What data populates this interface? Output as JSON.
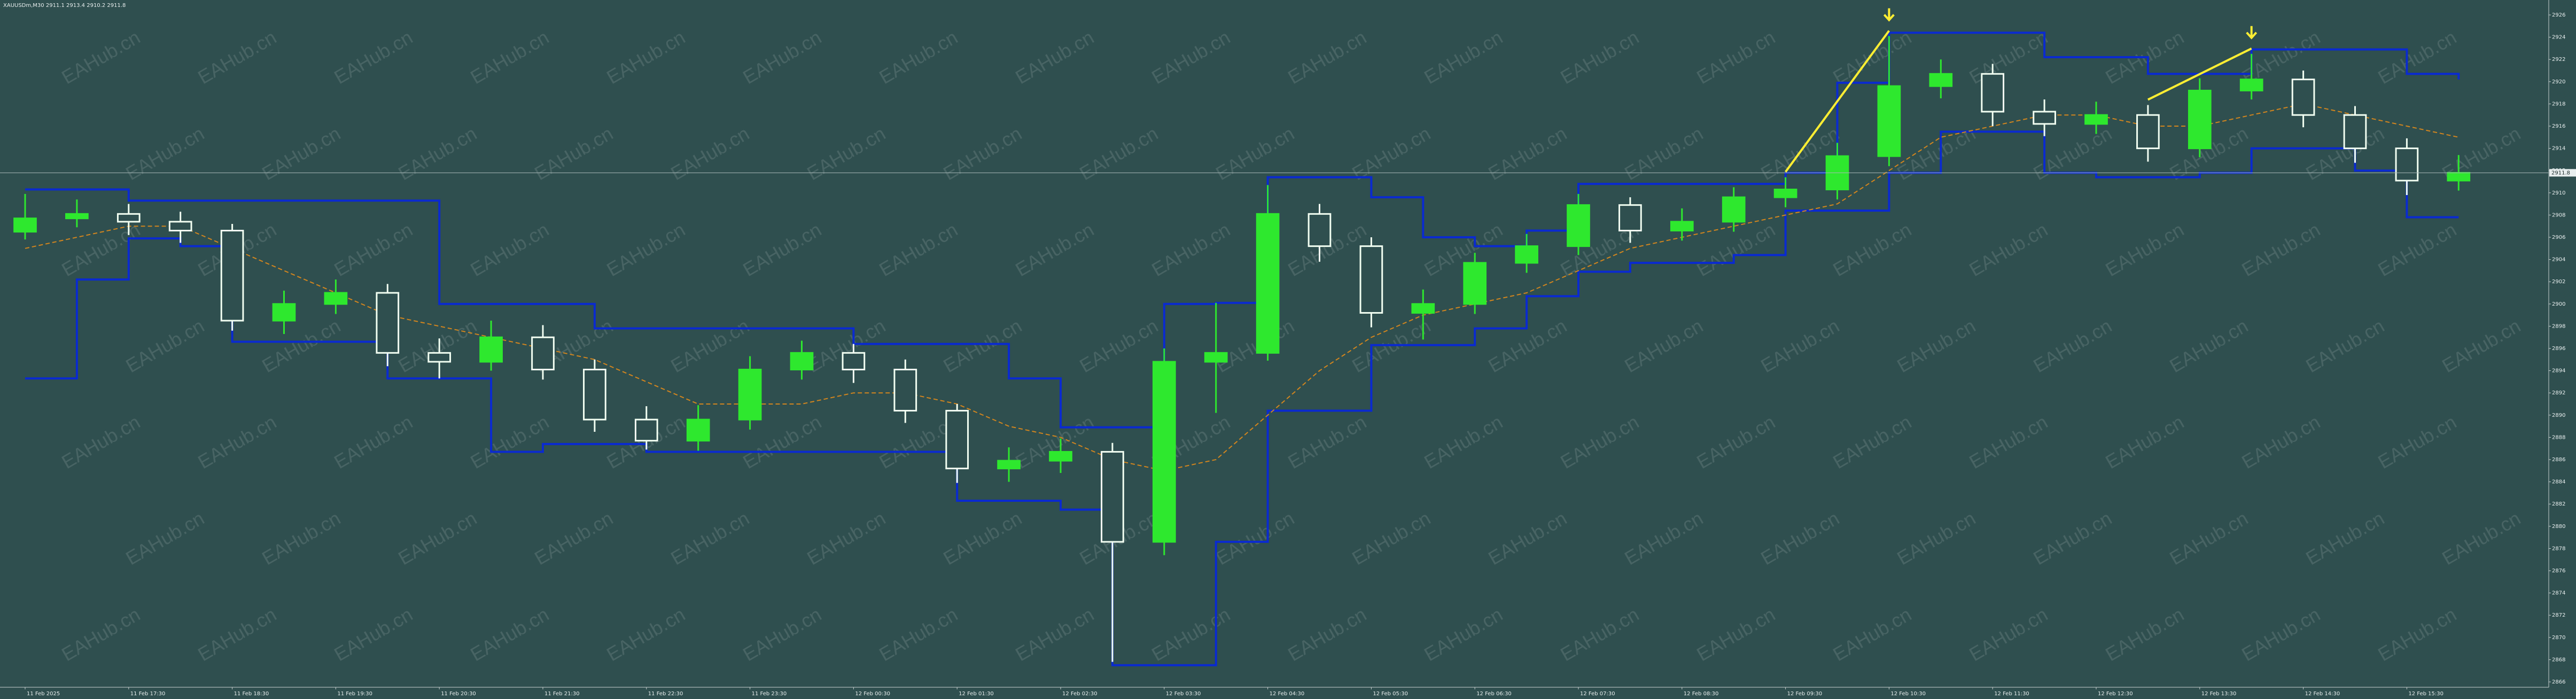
{
  "chart_data": {
    "type": "candlestick",
    "symbol": "XAUUSDm,M30",
    "watermark": "EAHub.cn",
    "colors": {
      "background": "#2f4f4f",
      "up": "#2ee82e",
      "down": "#f2fff2",
      "price_line": "#a9b9b9"
    },
    "categories": [
      "11 Feb 2025",
      null,
      "11 Feb 17:30",
      null,
      "11 Feb 18:30",
      null,
      "11 Feb 19:30",
      null,
      "11 Feb 20:30",
      null,
      "11 Feb 21:30",
      null,
      "11 Feb 22:30",
      null,
      "11 Feb 23:30",
      null,
      "12 Feb 00:30",
      null,
      "12 Feb 01:30",
      null,
      "12 Feb 02:30",
      null,
      "12 Feb 03:30",
      null,
      "12 Feb 04:30",
      null,
      "12 Feb 05:30",
      null,
      "12 Feb 06:30",
      null,
      "12 Feb 07:30",
      null,
      "12 Feb 08:30",
      null,
      "12 Feb 09:30",
      null,
      "12 Feb 10:30",
      null,
      "12 Feb 11:30",
      null,
      "12 Feb 12:30",
      null,
      "12 Feb 13:30",
      null,
      "12 Feb 14:30",
      null,
      "12 Feb 15:30",
      null
    ],
    "open": [
      2906.5,
      2907.7,
      2908.1,
      2907.4,
      2906.6,
      2898.5,
      2900.0,
      2901.0,
      2895.6,
      2894.8,
      2897.0,
      2894.1,
      2889.6,
      2887.7,
      2889.6,
      2894.1,
      2895.6,
      2894.1,
      2890.4,
      2885.2,
      2885.9,
      2886.7,
      2878.6,
      2894.8,
      2895.6,
      2908.1,
      2905.2,
      2899.2,
      2900.0,
      2903.7,
      2905.2,
      2908.9,
      2906.6,
      2907.4,
      2909.6,
      2910.3,
      2913.3,
      2919.6,
      2920.7,
      2917.3,
      2916.2,
      2917.0,
      2914.0,
      2919.2,
      2920.2,
      2917.0,
      2914.0,
      2911.1
    ],
    "high": [
      2909.9,
      2909.4,
      2909.0,
      2908.3,
      2907.2,
      2901.2,
      2902.2,
      2901.8,
      2896.9,
      2898.5,
      2898.1,
      2895.0,
      2890.8,
      2890.9,
      2895.3,
      2896.7,
      2896.4,
      2895.0,
      2891.0,
      2887.1,
      2887.9,
      2887.5,
      2896.0,
      2900.1,
      2910.7,
      2909.0,
      2906.0,
      2901.3,
      2904.6,
      2906.3,
      2909.9,
      2909.6,
      2908.6,
      2910.5,
      2911.4,
      2914.5,
      2924.1,
      2922.0,
      2921.6,
      2918.4,
      2918.2,
      2917.9,
      2920.3,
      2922.5,
      2921.0,
      2917.8,
      2914.9,
      2913.4
    ],
    "low": [
      2905.8,
      2906.9,
      2906.2,
      2905.5,
      2897.6,
      2897.3,
      2899.1,
      2894.4,
      2893.3,
      2894.0,
      2893.2,
      2888.5,
      2886.9,
      2886.8,
      2888.7,
      2893.2,
      2892.9,
      2889.3,
      2883.9,
      2884.0,
      2884.8,
      2867.8,
      2877.4,
      2890.2,
      2894.9,
      2903.8,
      2897.9,
      2896.8,
      2899.1,
      2902.8,
      2904.4,
      2905.5,
      2905.7,
      2906.5,
      2908.7,
      2909.4,
      2912.4,
      2918.5,
      2916.0,
      2915.1,
      2915.3,
      2912.8,
      2913.2,
      2918.4,
      2915.9,
      2912.7,
      2909.8,
      2910.2
    ],
    "close": [
      2907.7,
      2908.1,
      2907.4,
      2906.6,
      2898.5,
      2900.0,
      2901.0,
      2895.6,
      2894.8,
      2897.0,
      2894.1,
      2889.6,
      2887.7,
      2889.6,
      2894.1,
      2895.6,
      2894.1,
      2890.4,
      2885.2,
      2885.9,
      2886.7,
      2878.6,
      2894.8,
      2895.6,
      2908.1,
      2905.2,
      2899.2,
      2900.0,
      2903.7,
      2905.2,
      2908.9,
      2906.6,
      2907.4,
      2909.6,
      2910.3,
      2913.3,
      2919.6,
      2920.7,
      2917.3,
      2916.2,
      2917.0,
      2914.0,
      2919.2,
      2920.2,
      2917.0,
      2914.0,
      2911.1,
      2911.8
    ],
    "lines": [
      {
        "color": "#0a2ad0",
        "dashed": false,
        "values": [
          2910.3,
          2910.3,
          2909.3,
          2909.3,
          2909.3,
          2909.3,
          2909.3,
          2909.3,
          2900.0,
          2900.0,
          2900.0,
          2897.8,
          2897.8,
          2897.8,
          2897.8,
          2897.8,
          2896.4,
          2896.4,
          2896.4,
          2893.3,
          2888.9,
          2888.9,
          2900.0,
          2900.1,
          2911.4,
          2911.4,
          2909.6,
          2906.0,
          2905.2,
          2906.6,
          2910.8,
          2910.8,
          2910.8,
          2910.8,
          2911.8,
          2919.9,
          2924.4,
          2924.4,
          2924.4,
          2922.2,
          2922.2,
          2920.7,
          2920.7,
          2922.9,
          2922.9,
          2922.9,
          2920.7,
          2920.2
        ]
      },
      {
        "color": "#0a2ad0",
        "dashed": false,
        "values": [
          2893.3,
          2902.2,
          2905.9,
          2905.2,
          2896.6,
          2896.6,
          2896.6,
          2893.3,
          2893.3,
          2886.7,
          2887.4,
          2887.4,
          2886.7,
          2886.7,
          2886.7,
          2886.7,
          2886.7,
          2886.7,
          2882.3,
          2882.3,
          2881.5,
          2867.5,
          2867.5,
          2878.6,
          2890.4,
          2890.4,
          2896.3,
          2896.3,
          2897.8,
          2900.7,
          2902.9,
          2903.7,
          2903.7,
          2904.4,
          2908.4,
          2908.4,
          2911.8,
          2915.5,
          2915.5,
          2911.8,
          2911.4,
          2911.4,
          2911.8,
          2914.0,
          2914.0,
          2912.0,
          2907.8,
          2907.8
        ]
      },
      {
        "color": "#d2851e",
        "dashed": true,
        "values": [
          2905,
          2906,
          2907,
          2907,
          2905,
          2903,
          2901,
          2899,
          2898,
          2897,
          2896,
          2895,
          2893,
          2891,
          2891,
          2891,
          2892,
          2892,
          2891,
          2889,
          2888,
          2886,
          2885,
          2886,
          2890,
          2894,
          2897,
          2899,
          2900,
          2901,
          2903,
          2905,
          2906,
          2907,
          2908,
          2909,
          2912,
          2915,
          2916,
          2917,
          2917,
          2916,
          2916,
          2917,
          2918,
          2917,
          2916,
          2915
        ]
      }
    ],
    "ylim": [
      2866,
      2926
    ],
    "yticks": [
      2866,
      2868,
      2870,
      2872,
      2874,
      2876,
      2878,
      2880,
      2882,
      2884,
      2886,
      2888,
      2890,
      2892,
      2894,
      2896,
      2898,
      2900,
      2902,
      2904,
      2906,
      2908,
      2910,
      2912,
      2914,
      2916,
      2918,
      2920,
      2922,
      2924,
      2926
    ],
    "grid": false
  }
}
